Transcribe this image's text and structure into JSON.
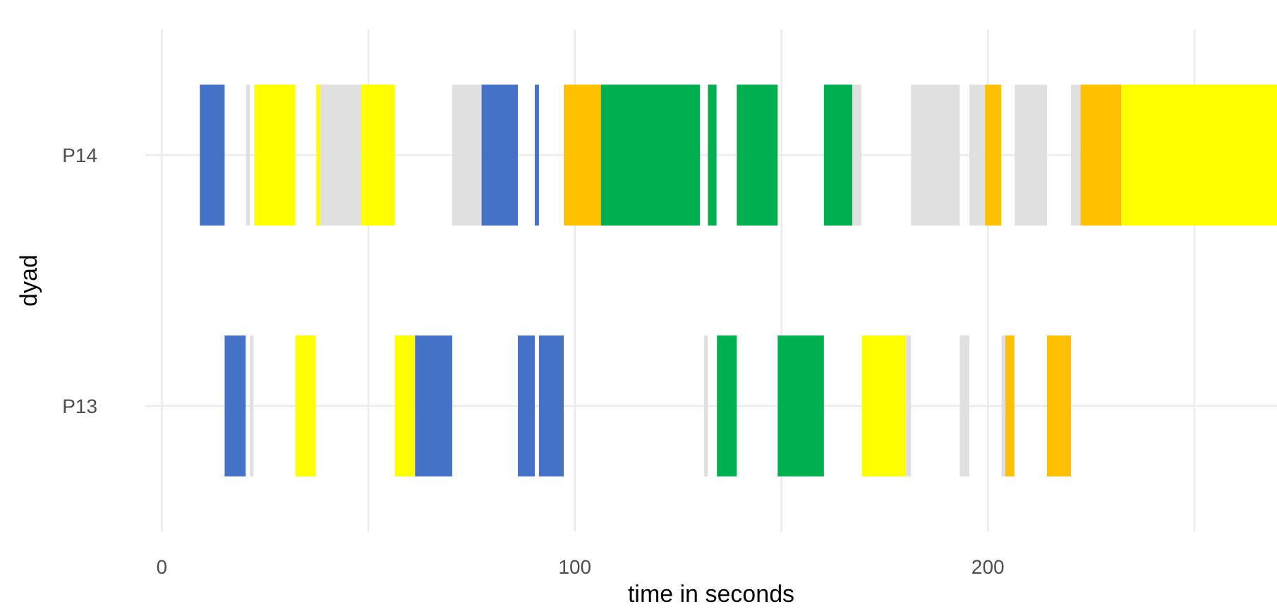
{
  "chart_data": {
    "type": "bar",
    "orientation": "horizontal",
    "xlabel": "time in seconds",
    "ylabel": "dyad",
    "categories": [
      "P14",
      "P13"
    ],
    "xlim": [
      -4,
      270
    ],
    "xticks": [
      0,
      {
        "value": 50,
        "label": null
      },
      100,
      {
        "value": 150,
        "label": null
      },
      200,
      {
        "value": 250,
        "label": null
      }
    ],
    "grid": true,
    "series": [
      {
        "values": [
          6.0,
          5.1
        ],
        "base": [
          9.2,
          15.2
        ],
        "colors": [
          "#4472c4",
          "#4472c4"
        ]
      },
      {
        "values": [
          0.9,
          0.9
        ],
        "base": [
          20.4,
          21.3
        ],
        "colors": [
          "#e0e0e0",
          "#e0e0e0"
        ]
      },
      {
        "values": [
          9.9,
          5.0
        ],
        "base": [
          22.4,
          32.3
        ],
        "colors": [
          "#ffff00",
          "#ffff00"
        ]
      },
      {
        "values": [
          1.0,
          4.9
        ],
        "base": [
          37.4,
          56.4
        ],
        "colors": [
          "#ffff00",
          "#ffff00"
        ]
      },
      {
        "values": [
          9.9,
          9.0
        ],
        "base": [
          38.4,
          61.3
        ],
        "colors": [
          "#e0e0e0",
          "#4472c4"
        ]
      },
      {
        "values": [
          8.0,
          4.1
        ],
        "base": [
          48.3,
          86.2
        ],
        "colors": [
          "#ffff00",
          "#4472c4"
        ]
      },
      {
        "values": [
          7.1,
          6.0
        ],
        "base": [
          70.3,
          91.3
        ],
        "colors": [
          "#e0e0e0",
          "#4472c4"
        ]
      },
      {
        "values": [
          8.8,
          0.9
        ],
        "base": [
          77.4,
          131.3
        ],
        "colors": [
          "#4472c4",
          "#e0e0e0"
        ]
      },
      {
        "values": [
          1.0,
          4.8
        ],
        "base": [
          90.3,
          134.4
        ],
        "colors": [
          "#4472c4",
          "#00b050"
        ]
      },
      {
        "values": [
          9.0,
          11.2
        ],
        "base": [
          97.3,
          149.1
        ],
        "colors": [
          "#ffc000",
          "#00b050"
        ]
      },
      {
        "values": [
          24.0,
          10.7
        ],
        "base": [
          106.3,
          169.5
        ],
        "colors": [
          "#00b050",
          "#ffff00"
        ]
      },
      {
        "values": [
          2.1,
          1.2
        ],
        "base": [
          132.2,
          180.2
        ],
        "colors": [
          "#00b050",
          "#e0e0e0"
        ]
      },
      {
        "values": [
          9.9,
          2.3
        ],
        "base": [
          139.2,
          193.2
        ],
        "colors": [
          "#00b050",
          "#e0e0e0"
        ]
      },
      {
        "values": [
          6.9,
          0.9
        ],
        "base": [
          160.3,
          203.3
        ],
        "colors": [
          "#00b050",
          "#e0e0e0"
        ]
      },
      {
        "values": [
          2.2,
          2.2
        ],
        "base": [
          167.2,
          204.2
        ],
        "colors": [
          "#e0e0e0",
          "#ffc000"
        ]
      },
      {
        "values": [
          11.8,
          5.8
        ],
        "base": [
          181.4,
          214.3
        ],
        "colors": [
          "#e0e0e0",
          "#ffc000"
        ]
      },
      {
        "values": [
          3.8,
          null
        ],
        "base": [
          195.5,
          null
        ],
        "colors": [
          "#e0e0e0",
          null
        ]
      },
      {
        "values": [
          3.9,
          null
        ],
        "base": [
          199.3,
          null
        ],
        "colors": [
          "#ffc000",
          null
        ]
      },
      {
        "values": [
          7.8,
          null
        ],
        "base": [
          206.5,
          null
        ],
        "colors": [
          "#e0e0e0",
          null
        ]
      },
      {
        "values": [
          2.3,
          null
        ],
        "base": [
          220.1,
          null
        ],
        "colors": [
          "#e0e0e0",
          null
        ]
      },
      {
        "values": [
          9.9,
          null
        ],
        "base": [
          222.4,
          null
        ],
        "colors": [
          "#ffc000",
          null
        ]
      },
      {
        "values": [
          37.7,
          null
        ],
        "base": [
          232.3,
          null
        ],
        "colors": [
          "#ffff00",
          null
        ]
      }
    ]
  }
}
